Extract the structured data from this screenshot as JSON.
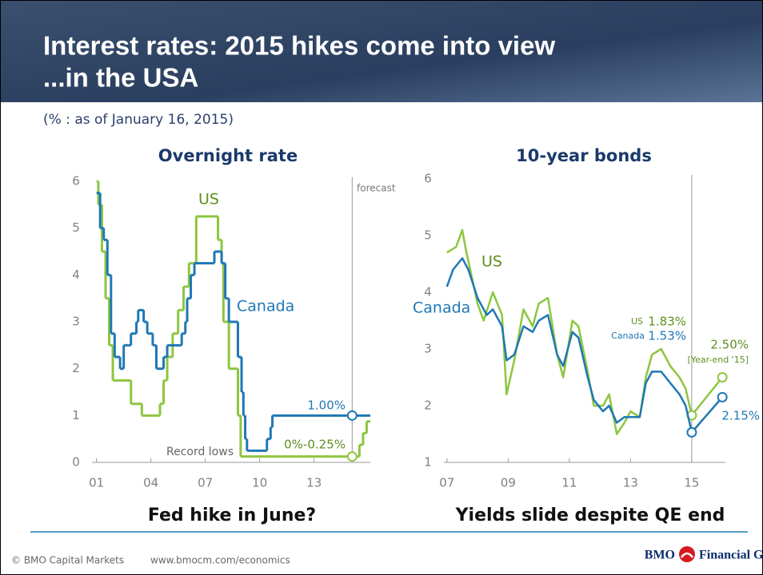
{
  "header": {
    "title_lines": [
      "Interest rates: 2015 hikes come into view",
      "...in the USA"
    ]
  },
  "subtitle": "(% : as of January 16, 2015)",
  "footer": {
    "copyright": "© BMO Capital Markets",
    "url": "www.bmocm.com/economics",
    "brand": "BMO",
    "brand_suffix": "Financial Group"
  },
  "chart_data": [
    {
      "type": "step",
      "title": "Overnight rate",
      "caption": "Fed hike in June?",
      "xlim": [
        2000.75,
        2016.1
      ],
      "ylim": [
        0,
        6
      ],
      "xticks": [
        {
          "value": 2001,
          "label": "01"
        },
        {
          "value": 2004,
          "label": "04"
        },
        {
          "value": 2007,
          "label": "07"
        },
        {
          "value": 2010,
          "label": "10"
        },
        {
          "value": 2013,
          "label": "13"
        }
      ],
      "yticks": [
        0,
        1,
        2,
        3,
        4,
        5,
        6
      ],
      "grid": false,
      "forecast_x": 2015.1,
      "forecast_label": "forecast",
      "annotations": [
        "Record lows"
      ],
      "series": [
        {
          "name": "US",
          "color": "#8dc63f",
          "x": [
            2001.0,
            2001.1,
            2001.3,
            2001.5,
            2001.7,
            2001.9,
            2002.9,
            2003.5,
            2004.5,
            2004.7,
            2004.9,
            2005.2,
            2005.5,
            2005.8,
            2006.1,
            2006.5,
            2007.7,
            2007.9,
            2008.0,
            2008.3,
            2008.8,
            2008.95,
            2015.5,
            2015.7,
            2015.9
          ],
          "values": [
            6,
            5.5,
            4.5,
            3.5,
            2.5,
            1.75,
            1.25,
            1.0,
            1.25,
            1.75,
            2.25,
            2.75,
            3.25,
            3.75,
            4.25,
            5.25,
            4.75,
            4.25,
            3.0,
            2.0,
            1.0,
            0.125,
            0.375,
            0.625,
            0.875
          ],
          "marker": {
            "x": 2015.1,
            "value": 0.125,
            "value_label": "0%-0.25%"
          }
        },
        {
          "name": "Canada",
          "color": "#1f78b4",
          "x": [
            2001.0,
            2001.2,
            2001.4,
            2001.6,
            2001.8,
            2002.0,
            2002.3,
            2002.5,
            2002.9,
            2003.2,
            2003.3,
            2003.6,
            2003.8,
            2004.1,
            2004.3,
            2004.7,
            2004.9,
            2005.7,
            2005.9,
            2006.0,
            2006.2,
            2006.4,
            2007.5,
            2007.9,
            2008.1,
            2008.3,
            2008.8,
            2009.0,
            2009.1,
            2009.2,
            2009.3,
            2010.4,
            2010.6,
            2010.7
          ],
          "values": [
            5.75,
            5.0,
            4.75,
            4.0,
            2.75,
            2.25,
            2.0,
            2.5,
            2.75,
            3.0,
            3.25,
            3.0,
            2.75,
            2.5,
            2.0,
            2.25,
            2.5,
            2.75,
            3.0,
            3.5,
            4.0,
            4.25,
            4.5,
            4.25,
            3.5,
            3.0,
            2.25,
            1.5,
            1.0,
            0.5,
            0.25,
            0.5,
            0.75,
            1.0
          ],
          "marker": {
            "x": 2015.1,
            "value": 1.0,
            "value_label": "1.00%"
          }
        }
      ]
    },
    {
      "type": "line",
      "title": "10-year bonds",
      "caption": "Yields slide despite QE end",
      "xlim": [
        2006.9,
        2016.1
      ],
      "ylim": [
        1,
        6
      ],
      "xticks": [
        {
          "value": 2007,
          "label": "07"
        },
        {
          "value": 2009,
          "label": "09"
        },
        {
          "value": 2011,
          "label": "11"
        },
        {
          "value": 2013,
          "label": "13"
        },
        {
          "value": 2015,
          "label": "15"
        }
      ],
      "yticks": [
        1,
        2,
        3,
        4,
        5,
        6
      ],
      "grid": false,
      "forecast_x": 2015,
      "series": [
        {
          "name": "US",
          "color": "#8dc63f",
          "x": [
            2007.0,
            2007.3,
            2007.5,
            2007.6,
            2008.0,
            2008.2,
            2008.5,
            2008.8,
            2008.95,
            2009.2,
            2009.5,
            2009.8,
            2010.0,
            2010.3,
            2010.6,
            2010.8,
            2011.1,
            2011.3,
            2011.6,
            2011.8,
            2012.1,
            2012.3,
            2012.55,
            2012.8,
            2013.0,
            2013.3,
            2013.5,
            2013.7,
            2014.0,
            2014.3,
            2014.6,
            2014.8,
            2015.0
          ],
          "values": [
            4.7,
            4.8,
            5.1,
            4.8,
            3.8,
            3.5,
            4.0,
            3.6,
            2.2,
            2.8,
            3.7,
            3.4,
            3.8,
            3.9,
            2.9,
            2.5,
            3.5,
            3.4,
            2.6,
            2.0,
            2.0,
            2.2,
            1.5,
            1.7,
            1.9,
            1.8,
            2.5,
            2.9,
            3.0,
            2.7,
            2.5,
            2.3,
            1.83
          ],
          "forecast": {
            "x": [
              2015,
              2016
            ],
            "values": [
              1.83,
              2.5
            ],
            "value_labels": [
              "1.83%",
              "2.50%"
            ],
            "note": "[Year-end '15]"
          }
        },
        {
          "name": "Canada",
          "color": "#1f78b4",
          "x": [
            2007.0,
            2007.2,
            2007.5,
            2007.7,
            2008.0,
            2008.3,
            2008.5,
            2008.8,
            2008.95,
            2009.2,
            2009.5,
            2009.8,
            2010.0,
            2010.3,
            2010.6,
            2010.8,
            2011.1,
            2011.3,
            2011.6,
            2011.8,
            2012.1,
            2012.3,
            2012.55,
            2012.8,
            2013.0,
            2013.3,
            2013.5,
            2013.7,
            2014.0,
            2014.3,
            2014.6,
            2014.8,
            2015.0
          ],
          "values": [
            4.1,
            4.4,
            4.6,
            4.4,
            3.9,
            3.6,
            3.7,
            3.4,
            2.8,
            2.9,
            3.4,
            3.3,
            3.5,
            3.6,
            2.9,
            2.7,
            3.3,
            3.2,
            2.5,
            2.1,
            1.9,
            2.0,
            1.7,
            1.8,
            1.8,
            1.8,
            2.4,
            2.6,
            2.6,
            2.4,
            2.2,
            2.0,
            1.53
          ],
          "forecast": {
            "x": [
              2015,
              2016
            ],
            "values": [
              1.53,
              2.15
            ],
            "value_labels": [
              "1.53%",
              "2.15%"
            ]
          }
        }
      ]
    }
  ]
}
